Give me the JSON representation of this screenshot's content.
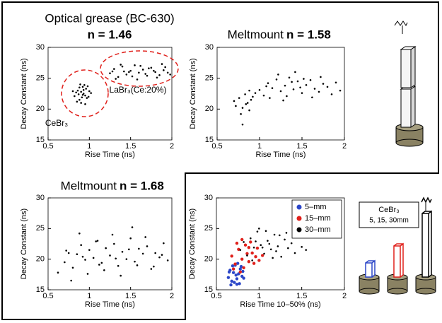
{
  "chart_data": [
    {
      "type": "scatter",
      "title": "Optical grease (BC-630)",
      "subtitle": "n = 1.46",
      "x_label": "Rise Time (ns)",
      "y_label": "Decay Constant (ns)",
      "xlim": [
        0.5,
        2
      ],
      "xticks": [
        0.5,
        1,
        1.5,
        2
      ],
      "ylim": [
        15,
        30
      ],
      "yticks": [
        15,
        20,
        25,
        30
      ],
      "annotations": [
        "LaBr₃(Ce:20%)",
        "CeBr₃"
      ],
      "series": [
        {
          "color": "#000000",
          "x": [
            0.82,
            0.86,
            0.88,
            0.9,
            0.92,
            0.95,
            0.97,
            1.0,
            0.85,
            0.89,
            0.93,
            0.96,
            0.84,
            0.91,
            0.94,
            0.99,
            0.87,
            0.9,
            0.93,
            1.02,
            0.8,
            0.88,
            0.92,
            0.95,
            0.98
          ],
          "values": [
            22.1,
            23.0,
            21.5,
            22.8,
            23.6,
            22.2,
            21.8,
            22.9,
            21.2,
            24.0,
            22.5,
            23.3,
            22.7,
            21.9,
            23.9,
            22.0,
            22.4,
            21.0,
            23.1,
            22.6,
            22.9,
            23.5,
            22.3,
            20.8,
            23.7
          ]
        },
        {
          "color": "#000000",
          "x": [
            1.25,
            1.3,
            1.35,
            1.4,
            1.45,
            1.5,
            1.55,
            1.6,
            1.65,
            1.7,
            1.75,
            1.8,
            1.85,
            1.9,
            1.95,
            1.32,
            1.42,
            1.52,
            1.62,
            1.72,
            1.82,
            1.92,
            1.38,
            1.48,
            1.58,
            1.68,
            1.78,
            1.88,
            1.98,
            1.28
          ],
          "values": [
            25.8,
            26.5,
            25.2,
            26.9,
            25.6,
            26.2,
            27.1,
            25.9,
            26.4,
            25.4,
            26.7,
            26.0,
            25.5,
            26.3,
            25.9,
            24.9,
            26.1,
            25.3,
            27.0,
            26.6,
            25.1,
            26.8,
            27.2,
            26.0,
            24.8,
            25.7,
            26.2,
            27.3,
            25.6,
            26.1
          ]
        }
      ]
    },
    {
      "type": "scatter",
      "title": "Meltmount",
      "subtitle": "n = 1.58",
      "x_label": "Rise Time (ns)",
      "y_label": "Decay Constant (ns)",
      "xlim": [
        0.5,
        2
      ],
      "xticks": [
        0.5,
        1,
        1.5,
        2
      ],
      "ylim": [
        15,
        30
      ],
      "yticks": [
        15,
        20,
        25,
        30
      ],
      "series": [
        {
          "color": "#000000",
          "x": [
            0.72,
            0.76,
            0.8,
            0.83,
            0.86,
            0.88,
            0.9,
            0.78,
            0.84,
            0.92,
            0.7,
            0.95,
            1.0,
            1.05,
            1.1,
            1.15,
            1.2,
            1.25,
            1.3,
            1.35,
            1.4,
            1.45,
            1.5,
            1.55,
            1.6,
            1.65,
            1.7,
            1.75,
            1.8,
            1.85,
            1.9,
            1.95,
            1.12,
            1.22,
            1.32,
            1.42,
            1.52,
            1.62,
            1.72,
            1.08,
            1.28,
            1.38,
            1.48,
            0.8,
            0.88
          ],
          "values": [
            20.5,
            21.8,
            20.2,
            22.4,
            21.0,
            19.8,
            21.5,
            19.2,
            20.8,
            22.0,
            21.3,
            22.6,
            23.1,
            22.2,
            24.2,
            23.4,
            24.8,
            22.9,
            23.8,
            25.1,
            23.2,
            24.5,
            22.6,
            23.9,
            24.7,
            23.3,
            22.8,
            24.1,
            23.6,
            22.4,
            24.3,
            23.0,
            21.8,
            25.6,
            22.1,
            26.0,
            24.9,
            21.9,
            25.2,
            23.7,
            21.4,
            24.4,
            23.5,
            17.5,
            23.0
          ]
        }
      ]
    },
    {
      "type": "scatter",
      "title": "Meltmount",
      "subtitle": "n = 1.68",
      "x_label": "Rise Time (ns)",
      "y_label": "Decay Constant (ns)",
      "xlim": [
        0.5,
        2
      ],
      "xticks": [
        0.5,
        1,
        1.5,
        2
      ],
      "ylim": [
        15,
        30
      ],
      "yticks": [
        15,
        20,
        25,
        30
      ],
      "series": [
        {
          "color": "#000000",
          "x": [
            0.62,
            0.7,
            0.75,
            0.8,
            0.85,
            0.9,
            0.95,
            1.0,
            1.05,
            1.1,
            1.15,
            1.2,
            1.25,
            1.3,
            1.35,
            1.4,
            1.45,
            1.5,
            1.55,
            1.6,
            1.65,
            1.7,
            1.75,
            1.8,
            1.85,
            1.9,
            1.95,
            0.78,
            0.88,
            0.98,
            1.08,
            1.18,
            1.28,
            1.38,
            1.48,
            1.58,
            1.68,
            1.78,
            1.88,
            0.72,
            0.92,
            1.12,
            1.32,
            1.52
          ],
          "values": [
            17.8,
            19.5,
            21.0,
            18.6,
            20.8,
            22.3,
            19.9,
            21.5,
            20.2,
            23.0,
            19.4,
            21.8,
            20.6,
            22.5,
            18.9,
            21.2,
            20.0,
            23.4,
            19.6,
            21.7,
            20.9,
            22.1,
            18.4,
            21.0,
            20.3,
            22.6,
            19.8,
            16.5,
            24.2,
            17.6,
            22.9,
            18.2,
            24.0,
            17.3,
            21.6,
            19.0,
            23.6,
            18.8,
            20.7,
            21.4,
            20.4,
            19.1,
            20.1,
            25.2
          ]
        }
      ]
    },
    {
      "type": "scatter",
      "x_label": "Rise Time 10–50% (ns)",
      "y_label": "Decay Constant (ns)",
      "xlim": [
        0.5,
        2
      ],
      "xticks": [
        0.5,
        1,
        1.5,
        2
      ],
      "ylim": [
        15,
        30
      ],
      "yticks": [
        15,
        20,
        25,
        30
      ],
      "legend": "upper right",
      "series": [
        {
          "name": "5–mm",
          "color": "#2b46c8",
          "x": [
            0.64,
            0.66,
            0.68,
            0.7,
            0.72,
            0.74,
            0.76,
            0.78,
            0.8,
            0.82,
            0.67,
            0.71,
            0.75,
            0.79,
            0.69,
            0.73,
            0.77,
            0.65,
            0.81,
            0.74
          ],
          "values": [
            17.0,
            18.2,
            16.4,
            17.8,
            19.0,
            16.8,
            17.6,
            18.4,
            17.2,
            16.9,
            15.8,
            16.2,
            19.3,
            18.8,
            18.9,
            17.4,
            16.0,
            17.9,
            18.0,
            15.9
          ]
        },
        {
          "name": "15–mm",
          "color": "#e0201b",
          "x": [
            0.68,
            0.72,
            0.76,
            0.8,
            0.84,
            0.88,
            0.92,
            0.96,
            1.0,
            0.74,
            0.82,
            0.9,
            0.98,
            0.78,
            0.86,
            0.94,
            0.7,
            1.04,
            0.8,
            0.88
          ],
          "values": [
            20.5,
            19.2,
            21.6,
            20.0,
            22.3,
            19.6,
            21.0,
            20.4,
            19.8,
            22.6,
            18.6,
            22.8,
            21.8,
            17.9,
            20.9,
            19.3,
            18.4,
            20.6,
            23.2,
            21.9
          ]
        },
        {
          "name": "30–mm",
          "color": "#000000",
          "x": [
            0.78,
            0.82,
            0.86,
            0.9,
            0.94,
            0.98,
            1.02,
            1.06,
            1.1,
            1.14,
            1.18,
            1.22,
            1.26,
            1.3,
            1.34,
            1.38,
            1.42,
            1.46,
            1.5,
            1.55,
            0.92,
            1.0,
            1.08,
            1.16,
            1.24,
            1.32,
            1.12,
            1.2,
            0.96,
            1.04
          ],
          "values": [
            21.5,
            22.8,
            20.6,
            23.4,
            21.9,
            24.5,
            22.3,
            20.9,
            23.0,
            21.6,
            24.0,
            22.1,
            20.4,
            23.2,
            21.8,
            22.6,
            21.0,
            23.7,
            22.0,
            21.5,
            19.8,
            25.0,
            24.6,
            20.2,
            23.9,
            24.3,
            22.5,
            21.3,
            22.9,
            21.9
          ]
        }
      ]
    }
  ],
  "diagram": {
    "crystal": "CeBr₃",
    "lengths": "5, 15, 30mm"
  }
}
